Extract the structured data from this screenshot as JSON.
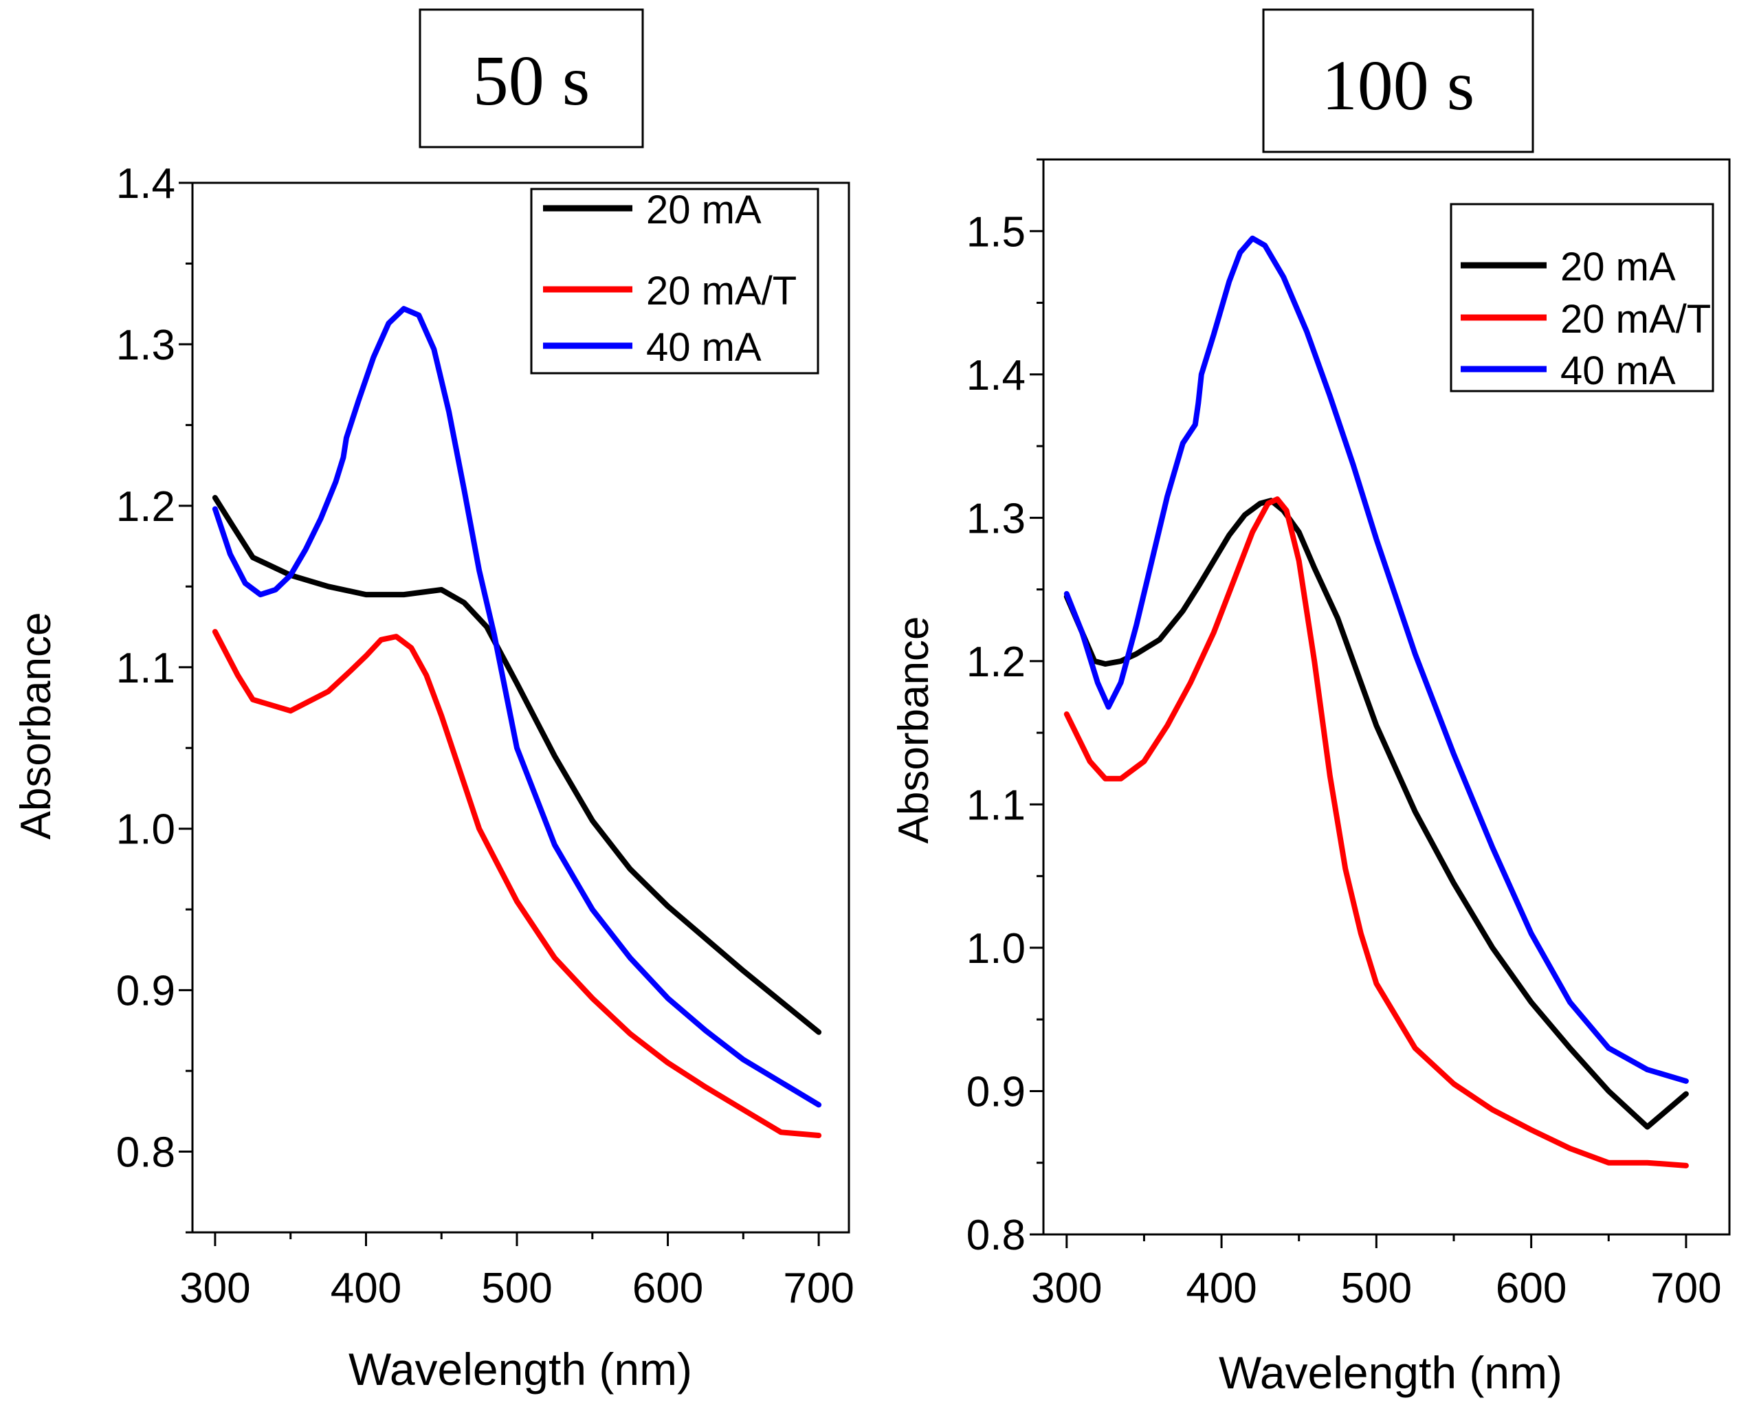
{
  "chart_data": [
    {
      "type": "line",
      "title": "50 s",
      "xlabel": "Wavelength (nm)",
      "ylabel": "Absorbance",
      "xlim": [
        285,
        720
      ],
      "ylim": [
        0.75,
        1.4
      ],
      "xticks": [
        300,
        400,
        500,
        600,
        700
      ],
      "xtick_labels": [
        "300",
        "400",
        "500",
        "600",
        "700"
      ],
      "yticks": [
        0.8,
        0.9,
        1.0,
        1.1,
        1.2,
        1.3,
        1.4
      ],
      "ytick_labels": [
        "0.8",
        "0.9",
        "1.0",
        "1.1",
        "1.2",
        "1.3",
        "1.4"
      ],
      "legend_position": "top-right",
      "grid": false,
      "series": [
        {
          "name": "20 mA",
          "color": "#000000",
          "x": [
            300,
            310,
            325,
            350,
            375,
            400,
            425,
            450,
            465,
            480,
            500,
            525,
            550,
            575,
            600,
            625,
            650,
            675,
            700
          ],
          "y": [
            1.205,
            1.19,
            1.168,
            1.157,
            1.15,
            1.145,
            1.145,
            1.148,
            1.14,
            1.125,
            1.09,
            1.045,
            1.005,
            0.975,
            0.952,
            0.932,
            0.912,
            0.893,
            0.874
          ]
        },
        {
          "name": "20 mA/T",
          "color": "#ff0000",
          "x": [
            300,
            315,
            325,
            350,
            375,
            390,
            400,
            410,
            420,
            430,
            440,
            450,
            460,
            475,
            500,
            525,
            550,
            575,
            600,
            625,
            650,
            675,
            700
          ],
          "y": [
            1.122,
            1.095,
            1.08,
            1.073,
            1.085,
            1.098,
            1.107,
            1.117,
            1.119,
            1.112,
            1.095,
            1.07,
            1.042,
            1.0,
            0.955,
            0.92,
            0.895,
            0.873,
            0.855,
            0.84,
            0.826,
            0.812,
            0.81
          ]
        },
        {
          "name": "40 mA",
          "color": "#0000ff",
          "x": [
            300,
            310,
            320,
            330,
            340,
            350,
            360,
            370,
            380,
            385,
            387,
            395,
            405,
            415,
            425,
            435,
            445,
            455,
            465,
            475,
            485,
            500,
            525,
            550,
            575,
            600,
            625,
            650,
            675,
            700
          ],
          "y": [
            1.198,
            1.17,
            1.152,
            1.145,
            1.148,
            1.157,
            1.173,
            1.192,
            1.215,
            1.23,
            1.242,
            1.265,
            1.292,
            1.313,
            1.322,
            1.318,
            1.297,
            1.258,
            1.21,
            1.16,
            1.12,
            1.05,
            0.99,
            0.95,
            0.92,
            0.895,
            0.875,
            0.857,
            0.843,
            0.829
          ]
        }
      ]
    },
    {
      "type": "line",
      "title": "100 s",
      "xlabel": "Wavelength (nm)",
      "ylabel": "Absorbance",
      "xlim": [
        285,
        728
      ],
      "ylim": [
        0.8,
        1.55
      ],
      "xticks": [
        300,
        400,
        500,
        600,
        700
      ],
      "xtick_labels": [
        "300",
        "400",
        "500",
        "600",
        "700"
      ],
      "yticks": [
        0.8,
        0.9,
        1.0,
        1.1,
        1.2,
        1.3,
        1.4,
        1.5
      ],
      "ytick_labels": [
        "0.8",
        "0.9",
        "1.0",
        "1.1",
        "1.2",
        "1.3",
        "1.4",
        "1.5"
      ],
      "legend_position": "top-right",
      "grid": false,
      "series": [
        {
          "name": "20 mA",
          "color": "#000000",
          "x": [
            300,
            310,
            318,
            325,
            335,
            345,
            360,
            375,
            385,
            395,
            405,
            415,
            425,
            432,
            440,
            450,
            460,
            475,
            490,
            500,
            525,
            550,
            575,
            600,
            625,
            650,
            675,
            700
          ],
          "y": [
            1.245,
            1.22,
            1.2,
            1.198,
            1.2,
            1.205,
            1.215,
            1.235,
            1.252,
            1.27,
            1.288,
            1.302,
            1.31,
            1.312,
            1.305,
            1.29,
            1.265,
            1.23,
            1.185,
            1.155,
            1.095,
            1.045,
            1.0,
            0.962,
            0.93,
            0.9,
            0.875,
            0.898
          ]
        },
        {
          "name": "20 mA/T",
          "color": "#ff0000",
          "x": [
            300,
            315,
            325,
            335,
            350,
            365,
            380,
            395,
            410,
            420,
            430,
            436,
            442,
            450,
            460,
            470,
            480,
            490,
            500,
            525,
            550,
            575,
            600,
            625,
            650,
            675,
            700
          ],
          "y": [
            1.163,
            1.13,
            1.118,
            1.118,
            1.13,
            1.155,
            1.185,
            1.22,
            1.262,
            1.29,
            1.31,
            1.313,
            1.305,
            1.27,
            1.2,
            1.12,
            1.055,
            1.01,
            0.975,
            0.93,
            0.905,
            0.887,
            0.873,
            0.86,
            0.85,
            0.85,
            0.848
          ]
        },
        {
          "name": "40 mA",
          "color": "#0000ff",
          "x": [
            300,
            310,
            320,
            327,
            335,
            345,
            355,
            365,
            375,
            383,
            385,
            387,
            395,
            405,
            412,
            420,
            428,
            440,
            455,
            470,
            485,
            500,
            525,
            550,
            575,
            600,
            625,
            650,
            675,
            700
          ],
          "y": [
            1.247,
            1.22,
            1.185,
            1.168,
            1.185,
            1.225,
            1.27,
            1.315,
            1.352,
            1.365,
            1.38,
            1.4,
            1.428,
            1.465,
            1.485,
            1.495,
            1.49,
            1.468,
            1.43,
            1.385,
            1.337,
            1.285,
            1.205,
            1.135,
            1.07,
            1.01,
            0.962,
            0.93,
            0.915,
            0.907
          ]
        }
      ]
    }
  ]
}
